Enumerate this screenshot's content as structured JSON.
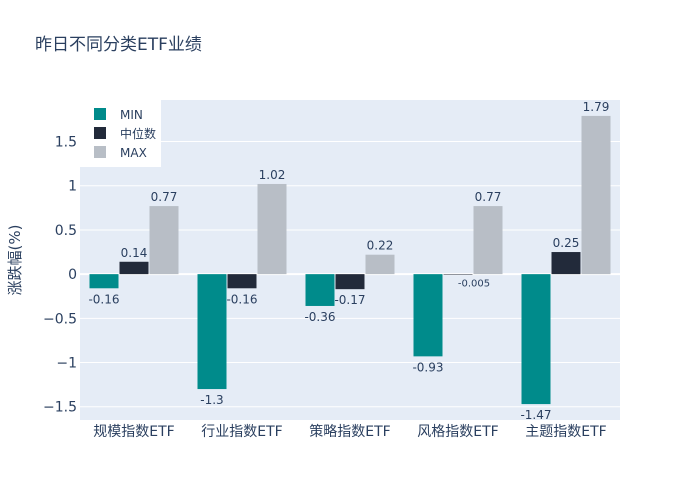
{
  "chart_data": {
    "type": "bar",
    "title": "昨日不同分类ETF业绩",
    "xlabel": "",
    "ylabel": "涨跌幅(%)",
    "categories": [
      "规模指数ETF",
      "行业指数ETF",
      "策略指数ETF",
      "风格指数ETF",
      "主题指数ETF"
    ],
    "series": [
      {
        "name": "MIN",
        "values": [
          -0.16,
          -1.3,
          -0.36,
          -0.93,
          -1.47
        ],
        "labels": [
          "-0.16",
          "-1.3",
          "-0.36",
          "-0.93",
          "-1.47"
        ],
        "color": "#008B8B"
      },
      {
        "name": "中位数",
        "values": [
          0.14,
          -0.16,
          -0.17,
          -0.005,
          0.25
        ],
        "labels": [
          "0.14",
          "-0.16",
          "-0.17",
          "-0.005",
          "0.25"
        ],
        "color": "#222A3A"
      },
      {
        "name": "MAX",
        "values": [
          0.77,
          1.02,
          0.22,
          0.77,
          1.79
        ],
        "labels": [
          "0.77",
          "1.02",
          "0.22",
          "0.77",
          "1.79"
        ],
        "color": "#B8BEC6"
      }
    ],
    "ylim": [
      -1.65,
      1.97
    ],
    "yticks": [
      -1.5,
      -1,
      -0.5,
      0,
      0.5,
      1,
      1.5
    ],
    "ytick_labels": [
      "−1.5",
      "−1",
      "−0.5",
      "0",
      "0.5",
      "1",
      "1.5"
    ],
    "grid": true,
    "legend_position": "top-left",
    "plot_background": "#E5ECF6"
  }
}
